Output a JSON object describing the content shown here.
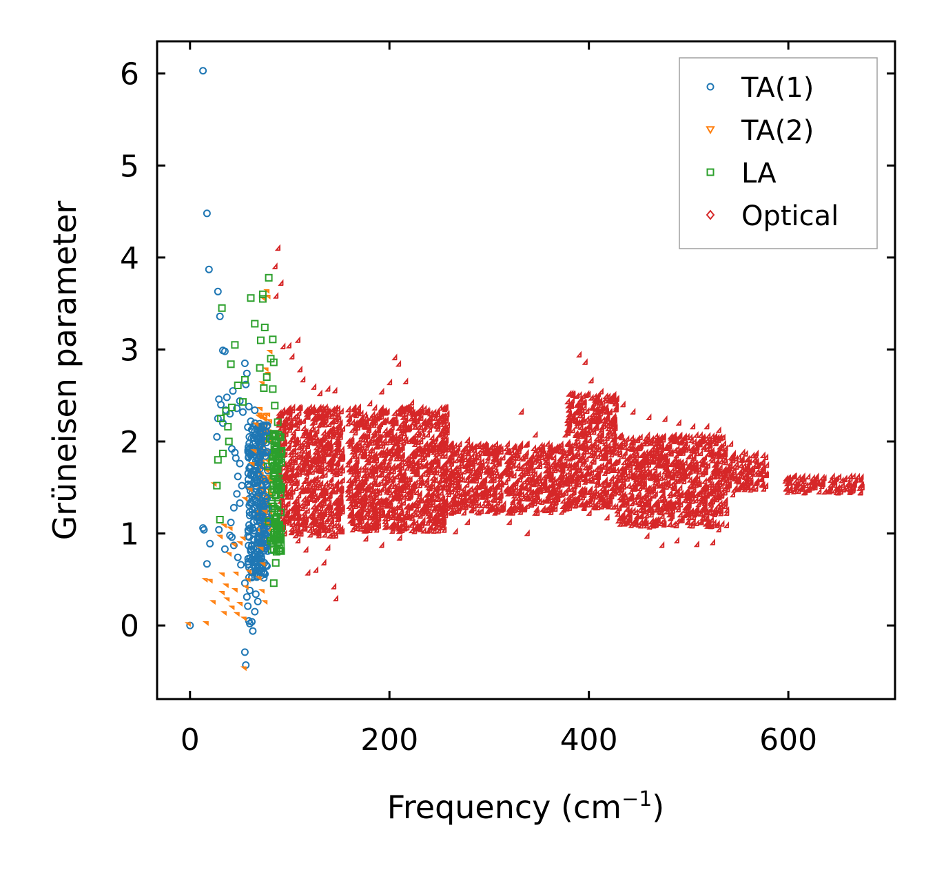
{
  "chart_data": {
    "type": "scatter",
    "title": "",
    "xlabel": "Frequency (cm",
    "xlabel_unit_sup": "−1",
    "xlabel_close": ")",
    "ylabel": "Grüneisen parameter",
    "xlim": [
      -33,
      707
    ],
    "ylim": [
      -0.8,
      6.35
    ],
    "xticks": [
      0,
      200,
      400,
      600
    ],
    "xtick_labels": [
      "0",
      "200",
      "400",
      "600"
    ],
    "yticks": [
      0,
      1,
      2,
      3,
      4,
      5,
      6
    ],
    "ytick_labels": [
      "0",
      "1",
      "2",
      "3",
      "4",
      "5",
      "6"
    ],
    "grid": false,
    "legend_position": "top-right",
    "series": [
      {
        "name": "TA(1)",
        "marker": "circle",
        "color": "#1f77b4",
        "points": [
          [
            0,
            0
          ],
          [
            13,
            6.03
          ],
          [
            17,
            4.48
          ],
          [
            19,
            3.87
          ],
          [
            28,
            3.63
          ],
          [
            30,
            3.36
          ],
          [
            33,
            2.99
          ],
          [
            35,
            2.98
          ],
          [
            29,
            2.46
          ],
          [
            31,
            2.4
          ],
          [
            28,
            2.25
          ],
          [
            33,
            2.2
          ],
          [
            27,
            2.05
          ],
          [
            37,
            2.48
          ],
          [
            40,
            2.3
          ],
          [
            36,
            2.34
          ],
          [
            43,
            2.55
          ],
          [
            47,
            2.36
          ],
          [
            50,
            2.44
          ],
          [
            53,
            2.32
          ],
          [
            55,
            2.85
          ],
          [
            57,
            2.74
          ],
          [
            56,
            2.62
          ],
          [
            59,
            2.38
          ],
          [
            45,
            1.88
          ],
          [
            50,
            1.76
          ],
          [
            48,
            1.62
          ],
          [
            52,
            1.52
          ],
          [
            42,
            1.92
          ],
          [
            46,
            1.82
          ],
          [
            41,
            1.12
          ],
          [
            44,
            1.28
          ],
          [
            47,
            1.43
          ],
          [
            50,
            1.33
          ],
          [
            13,
            1.06
          ],
          [
            14,
            1.04
          ],
          [
            20,
            0.89
          ],
          [
            17,
            0.67
          ],
          [
            29,
            1.04
          ],
          [
            35,
            0.83
          ],
          [
            40,
            0.98
          ],
          [
            42,
            0.96
          ],
          [
            44,
            0.87
          ],
          [
            48,
            0.74
          ],
          [
            51,
            0.66
          ],
          [
            55,
            0.46
          ],
          [
            57,
            0.31
          ],
          [
            58,
            0.21
          ],
          [
            59,
            0.05
          ],
          [
            60,
            0.02
          ],
          [
            62,
            0.04
          ],
          [
            63,
            -0.06
          ],
          [
            55,
            -0.29
          ],
          [
            56,
            -0.43
          ],
          [
            65,
            0.15
          ],
          [
            66,
            0.34
          ],
          [
            68,
            0.26
          ],
          [
            60,
            0.38
          ],
          [
            62,
            0.52
          ],
          [
            66,
            0.6
          ],
          [
            70,
            0.77
          ],
          [
            72,
            0.98
          ],
          [
            74,
            1.15
          ],
          [
            64,
            2.04
          ],
          [
            68,
            2.02
          ],
          [
            70,
            2.14
          ],
          [
            65,
            2.34
          ],
          [
            61,
            2.22
          ]
        ]
      },
      {
        "name": "TA(2)",
        "marker": "triangle-down",
        "color": "#ff7f0e",
        "points": [
          [
            0,
            0
          ],
          [
            17,
            0.48
          ],
          [
            18,
            0.01
          ],
          [
            22,
            0.47
          ],
          [
            25,
            0.24
          ],
          [
            34,
            0.34
          ],
          [
            36,
            0.12
          ],
          [
            38,
            0.42
          ],
          [
            34,
            0.54
          ],
          [
            39,
            0.27
          ],
          [
            44,
            0.18
          ],
          [
            47,
            0.37
          ],
          [
            49,
            0.11
          ],
          [
            52,
            0.22
          ],
          [
            56,
            0.06
          ],
          [
            56,
            -0.48
          ],
          [
            58,
            0.4
          ],
          [
            60,
            0.48
          ],
          [
            61,
            0.57
          ],
          [
            48,
            0.55
          ],
          [
            41,
            0.76
          ],
          [
            46,
            0.86
          ],
          [
            52,
            0.88
          ],
          [
            55,
            0.93
          ],
          [
            26,
            1.52
          ],
          [
            32,
            0.95
          ],
          [
            36,
            1.07
          ],
          [
            42,
            1.04
          ],
          [
            57,
            1.36
          ],
          [
            62,
            1.46
          ],
          [
            64,
            1.74
          ],
          [
            66,
            1.88
          ],
          [
            68,
            2.17
          ],
          [
            72,
            2.34
          ],
          [
            74,
            2.62
          ],
          [
            78,
            2.77
          ],
          [
            76,
            3.53
          ],
          [
            79,
            3.62
          ],
          [
            80,
            3.56
          ],
          [
            80,
            2.72
          ],
          [
            82,
            2.96
          ],
          [
            77,
            1.22
          ],
          [
            79,
            1.09
          ],
          [
            73,
            0.82
          ],
          [
            75,
            0.65
          ],
          [
            71,
            0.5
          ],
          [
            74,
            0.36
          ],
          [
            77,
            0.24
          ]
        ]
      },
      {
        "name": "LA",
        "marker": "square",
        "color": "#2ca02c",
        "points": [
          [
            27,
            1.52
          ],
          [
            28,
            1.8
          ],
          [
            30,
            1.15
          ],
          [
            33,
            1.87
          ],
          [
            31,
            2.25
          ],
          [
            36,
            2.33
          ],
          [
            38,
            2.16
          ],
          [
            41,
            2.84
          ],
          [
            45,
            3.05
          ],
          [
            39,
            2.0
          ],
          [
            42,
            2.37
          ],
          [
            32,
            3.45
          ],
          [
            48,
            2.61
          ],
          [
            53,
            2.43
          ],
          [
            55,
            2.67
          ],
          [
            61,
            3.56
          ],
          [
            65,
            3.28
          ],
          [
            71,
            3.1
          ],
          [
            73,
            3.55
          ],
          [
            73,
            3.6
          ],
          [
            75,
            3.24
          ],
          [
            79,
            3.78
          ],
          [
            83,
            3.11
          ],
          [
            74,
            2.58
          ],
          [
            77,
            2.7
          ],
          [
            70,
            2.8
          ],
          [
            81,
            2.9
          ],
          [
            84,
            2.86
          ],
          [
            83,
            2.57
          ],
          [
            85,
            2.39
          ],
          [
            88,
            2.21
          ],
          [
            90,
            2.05
          ],
          [
            86,
            1.88
          ],
          [
            84,
            1.65
          ],
          [
            88,
            1.58
          ],
          [
            86,
            1.41
          ],
          [
            83,
            1.27
          ],
          [
            85,
            1.11
          ],
          [
            87,
            0.98
          ],
          [
            84,
            0.83
          ],
          [
            86,
            0.68
          ],
          [
            84,
            0.46
          ],
          [
            90,
            1.0
          ],
          [
            91,
            1.23
          ],
          [
            89,
            1.47
          ],
          [
            92,
            1.9
          ],
          [
            80,
            2.03
          ],
          [
            78,
            1.73
          ],
          [
            79,
            1.13
          ],
          [
            81,
            0.92
          ]
        ]
      },
      {
        "name": "Optical",
        "marker": "diamond",
        "color": "#d62728",
        "points": [
          [
            90,
            4.08
          ],
          [
            87,
            3.88
          ],
          [
            93,
            3.7
          ],
          [
            88,
            3.56
          ],
          [
            95,
            3.01
          ],
          [
            101,
            3.02
          ],
          [
            110,
            3.08
          ],
          [
            104,
            2.9
          ],
          [
            112,
            2.76
          ],
          [
            115,
            2.65
          ],
          [
            126,
            2.57
          ],
          [
            132,
            2.5
          ],
          [
            140,
            2.55
          ],
          [
            147,
            2.53
          ],
          [
            153,
            2.08
          ],
          [
            155,
            1.8
          ],
          [
            152,
            1.2
          ],
          [
            145,
            0.95
          ],
          [
            140,
            0.82
          ],
          [
            136,
            0.66
          ],
          [
            128,
            0.58
          ],
          [
            146,
            0.4
          ],
          [
            148,
            0.27
          ],
          [
            120,
            0.55
          ],
          [
            118,
            0.8
          ],
          [
            110,
            0.9
          ],
          [
            104,
            1.0
          ],
          [
            100,
            1.3
          ],
          [
            96,
            1.6
          ],
          [
            98,
            2.2
          ],
          [
            170,
            2.3
          ],
          [
            182,
            2.39
          ],
          [
            194,
            2.52
          ],
          [
            202,
            2.62
          ],
          [
            207,
            2.89
          ],
          [
            211,
            2.82
          ],
          [
            218,
            2.63
          ],
          [
            224,
            2.4
          ],
          [
            230,
            2.2
          ],
          [
            240,
            2.05
          ],
          [
            252,
            1.95
          ],
          [
            265,
            1.88
          ],
          [
            280,
            1.99
          ],
          [
            300,
            1.85
          ],
          [
            320,
            1.95
          ],
          [
            334,
            2.3
          ],
          [
            348,
            2.05
          ],
          [
            360,
            1.95
          ],
          [
            378,
            2.05
          ],
          [
            386,
            2.48
          ],
          [
            392,
            2.92
          ],
          [
            398,
            2.84
          ],
          [
            404,
            2.64
          ],
          [
            414,
            2.52
          ],
          [
            424,
            2.44
          ],
          [
            436,
            2.38
          ],
          [
            446,
            2.3
          ],
          [
            462,
            2.24
          ],
          [
            478,
            2.22
          ],
          [
            492,
            2.18
          ],
          [
            506,
            2.14
          ],
          [
            520,
            2.14
          ],
          [
            532,
            2.1
          ],
          [
            544,
            1.95
          ],
          [
            556,
            1.86
          ],
          [
            568,
            1.78
          ],
          [
            580,
            1.72
          ],
          [
            574,
            1.62
          ],
          [
            560,
            1.52
          ],
          [
            546,
            1.4
          ],
          [
            540,
            1.2
          ],
          [
            532,
            1.02
          ],
          [
            526,
            0.88
          ],
          [
            510,
            0.86
          ],
          [
            490,
            0.9
          ],
          [
            475,
            0.85
          ],
          [
            460,
            0.95
          ],
          [
            440,
            1.1
          ],
          [
            420,
            1.15
          ],
          [
            402,
            1.2
          ],
          [
            380,
            1.3
          ],
          [
            350,
            1.2
          ],
          [
            340,
            0.98
          ],
          [
            322,
            1.1
          ],
          [
            300,
            1.22
          ],
          [
            280,
            1.1
          ],
          [
            268,
            1.0
          ],
          [
            250,
            1.12
          ],
          [
            232,
            1.05
          ],
          [
            212,
            0.93
          ],
          [
            194,
            0.85
          ],
          [
            178,
            0.92
          ],
          [
            165,
            1.1
          ],
          [
            160,
            1.4
          ],
          [
            602,
            1.58
          ],
          [
            610,
            1.52
          ],
          [
            622,
            1.47
          ],
          [
            638,
            1.43
          ],
          [
            652,
            1.42
          ],
          [
            664,
            1.44
          ],
          [
            674,
            1.5
          ],
          [
            668,
            1.53
          ],
          [
            648,
            1.55
          ],
          [
            626,
            1.58
          ],
          [
            608,
            1.6
          ]
        ]
      }
    ],
    "density_bands": [
      {
        "x_range": [
          90,
          155
        ],
        "y_range": [
          0.95,
          2.35
        ],
        "series": "Optical"
      },
      {
        "x_range": [
          160,
          260
        ],
        "y_range": [
          1.0,
          2.35
        ],
        "series": "Optical"
      },
      {
        "x_range": [
          260,
          380
        ],
        "y_range": [
          1.2,
          1.95
        ],
        "series": "Optical"
      },
      {
        "x_range": [
          380,
          430
        ],
        "y_range": [
          1.25,
          2.5
        ],
        "series": "Optical"
      },
      {
        "x_range": [
          430,
          540
        ],
        "y_range": [
          1.05,
          2.05
        ],
        "series": "Optical"
      },
      {
        "x_range": [
          540,
          580
        ],
        "y_range": [
          1.45,
          1.85
        ],
        "series": "Optical"
      },
      {
        "x_range": [
          598,
          676
        ],
        "y_range": [
          1.42,
          1.6
        ],
        "series": "Optical"
      },
      {
        "x_range": [
          58,
          78
        ],
        "y_range": [
          0.5,
          2.2
        ],
        "series": "TA(1)"
      },
      {
        "x_range": [
          70,
          82
        ],
        "y_range": [
          0.8,
          2.3
        ],
        "series": "TA(2)"
      },
      {
        "x_range": [
          82,
          92
        ],
        "y_range": [
          0.8,
          2.1
        ],
        "series": "LA"
      }
    ]
  }
}
